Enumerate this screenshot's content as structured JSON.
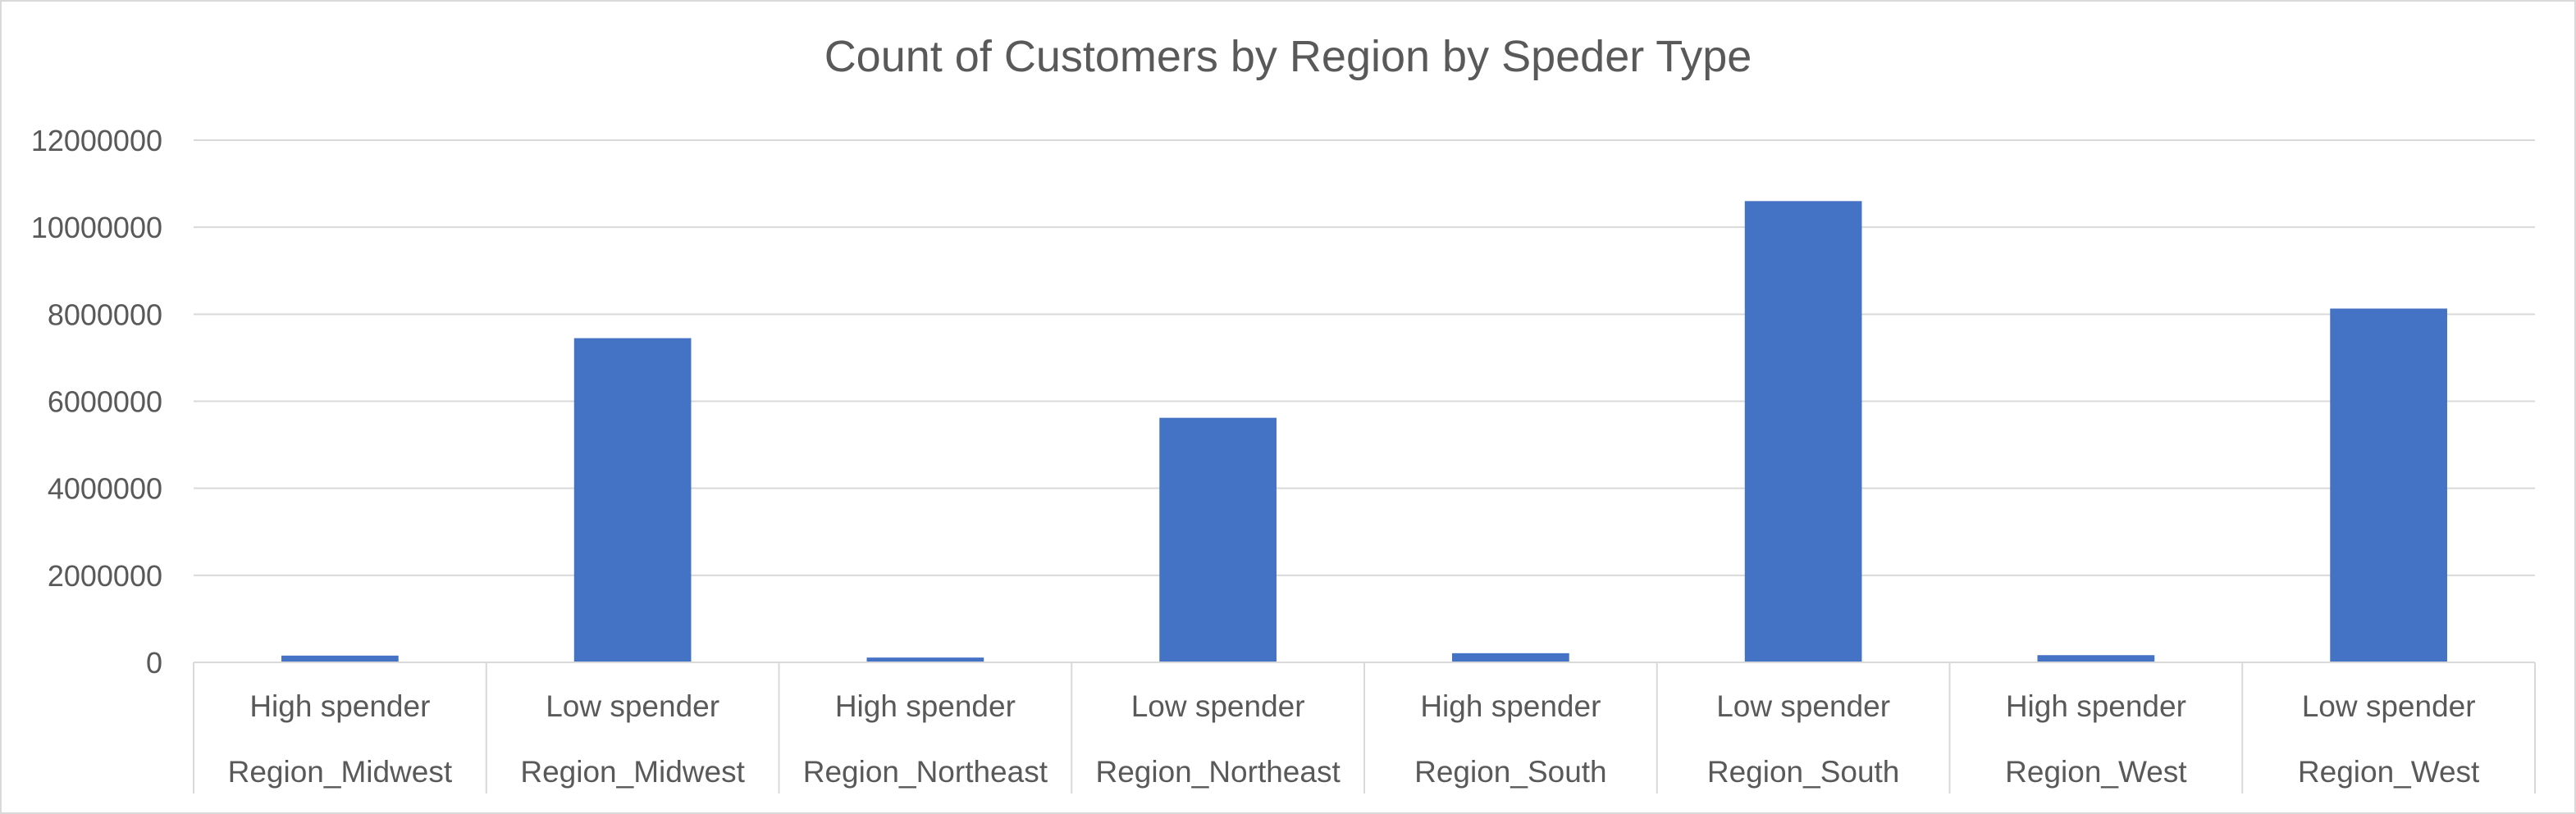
{
  "chart_data": {
    "type": "bar",
    "title": "Count of Customers by Region by Speder Type",
    "xlabel": "",
    "ylabel": "",
    "ylim": [
      0,
      12000000
    ],
    "y_ticks": [
      "0",
      "2000000",
      "4000000",
      "6000000",
      "8000000",
      "10000000",
      "12000000"
    ],
    "grid": true,
    "legend": "none",
    "categories": [
      {
        "spender": "High spender",
        "region": "Region_Midwest"
      },
      {
        "spender": "Low spender",
        "region": "Region_Midwest"
      },
      {
        "spender": "High spender",
        "region": "Region_Northeast"
      },
      {
        "spender": "Low spender",
        "region": "Region_Northeast"
      },
      {
        "spender": "High spender",
        "region": "Region_South"
      },
      {
        "spender": "Low spender",
        "region": "Region_South"
      },
      {
        "spender": "High spender",
        "region": "Region_West"
      },
      {
        "spender": "Low spender",
        "region": "Region_West"
      }
    ],
    "values": [
      155000,
      7450000,
      110000,
      5620000,
      210000,
      10600000,
      165000,
      8130000
    ],
    "colors": {
      "bar": "#4472c4",
      "grid": "#d9d9d9",
      "text": "#595959"
    }
  }
}
